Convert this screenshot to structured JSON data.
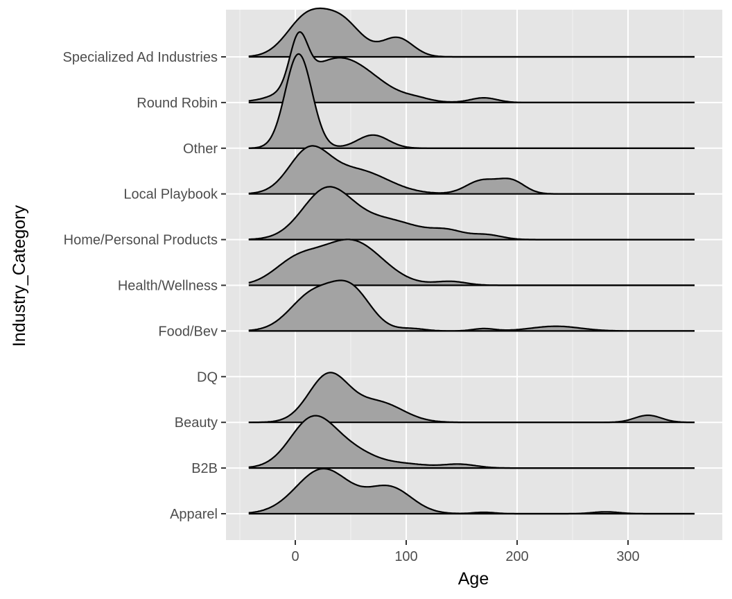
{
  "chart_data": {
    "type": "ridgeline",
    "xlabel": "Age",
    "ylabel": "Industry_Category",
    "xlim": [
      -50,
      380
    ],
    "x_ticks": [
      0,
      100,
      200,
      300
    ],
    "x_tick_labels": [
      "0",
      "100",
      "200",
      "300"
    ],
    "x_range_drawn": [
      -42,
      360
    ],
    "grid": true,
    "legend": "none",
    "colors": {
      "panel": "#e5e5e5",
      "grid": "#ffffff",
      "fill": "#a3a3a3",
      "line": "#000000",
      "text": "#4d4d4d"
    },
    "categories": [
      "Apparel",
      "B2B",
      "Beauty",
      "DQ",
      "Food/Bev",
      "Health/Wellness",
      "Home/Personal Products",
      "Local Playbook",
      "Other",
      "Round Robin",
      "Specialized Ad Industries"
    ],
    "series": [
      {
        "category": "Apparel",
        "components": [
          [
            25,
            24,
            0.95
          ],
          [
            85,
            20,
            0.55
          ],
          [
            170,
            10,
            0.03
          ],
          [
            280,
            12,
            0.04
          ]
        ]
      },
      {
        "category": "B2B",
        "components": [
          [
            15,
            20,
            1.0
          ],
          [
            50,
            22,
            0.35
          ],
          [
            100,
            20,
            0.08
          ],
          [
            148,
            15,
            0.08
          ]
        ]
      },
      {
        "category": "Beauty",
        "components": [
          [
            30,
            18,
            1.0
          ],
          [
            75,
            22,
            0.42
          ],
          [
            318,
            12,
            0.15
          ]
        ]
      },
      {
        "category": "DQ",
        "components": []
      },
      {
        "category": "Food/Bev",
        "components": [
          [
            15,
            20,
            0.75
          ],
          [
            50,
            18,
            0.85
          ],
          [
            105,
            12,
            0.05
          ],
          [
            170,
            10,
            0.05
          ],
          [
            235,
            22,
            0.1
          ]
        ]
      },
      {
        "category": "Health/Wellness",
        "components": [
          [
            0,
            20,
            0.45
          ],
          [
            50,
            28,
            0.95
          ],
          [
            140,
            14,
            0.08
          ]
        ]
      },
      {
        "category": "Home/Personal Products",
        "components": [
          [
            28,
            22,
            1.0
          ],
          [
            80,
            32,
            0.42
          ],
          [
            138,
            14,
            0.14
          ],
          [
            172,
            14,
            0.1
          ]
        ]
      },
      {
        "category": "Local Playbook",
        "components": [
          [
            12,
            18,
            0.85
          ],
          [
            55,
            28,
            0.5
          ],
          [
            168,
            14,
            0.28
          ],
          [
            195,
            12,
            0.27
          ]
        ]
      },
      {
        "category": "Other",
        "components": [
          [
            3,
            12,
            2.0
          ],
          [
            70,
            14,
            0.28
          ]
        ]
      },
      {
        "category": "Round Robin",
        "components": [
          [
            3,
            8,
            1.0
          ],
          [
            40,
            32,
            0.95
          ],
          [
            110,
            12,
            0.05
          ],
          [
            170,
            12,
            0.1
          ]
        ]
      },
      {
        "category": "Specialized Ad Industries",
        "components": [
          [
            10,
            18,
            0.8
          ],
          [
            42,
            18,
            0.72
          ],
          [
            92,
            14,
            0.4
          ]
        ]
      }
    ]
  }
}
